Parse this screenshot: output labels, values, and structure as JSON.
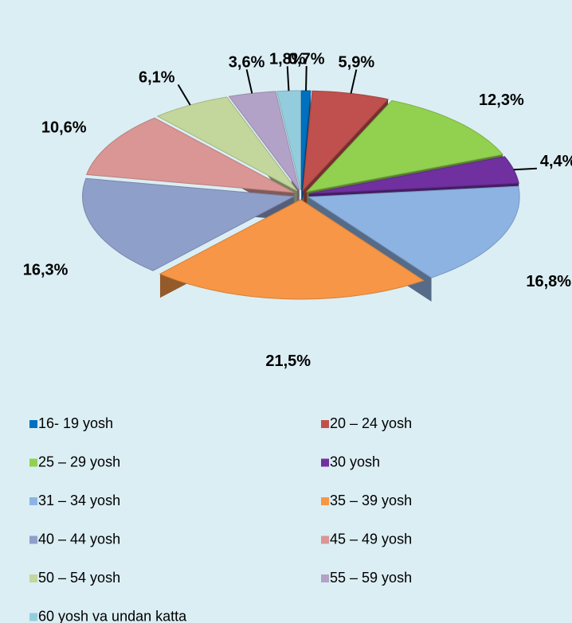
{
  "chart_data": {
    "type": "pie",
    "categories": [
      "16- 19 yosh",
      "20 – 24 yosh",
      "25 – 29 yosh",
      "30 yosh",
      "31 – 34 yosh",
      "35 – 39 yosh",
      "40 – 44 yosh",
      "45 – 49 yosh",
      "50 – 54 yosh",
      "55 – 59 yosh",
      "60 yosh va undan katta"
    ],
    "values": [
      0.7,
      5.9,
      12.3,
      4.4,
      16.8,
      21.5,
      16.3,
      10.6,
      6.1,
      3.6,
      1.8
    ],
    "value_labels": [
      "0,7%",
      "5,9%",
      "12,3%",
      "4,4%",
      "16,8%",
      "21,5%",
      "16,3%",
      "10,6%",
      "6,1%",
      "3,6%",
      "1,8%"
    ],
    "colors": [
      "#0070c0",
      "#c0504d",
      "#92d050",
      "#7030a0",
      "#8db3e2",
      "#f79646",
      "#8e9fca",
      "#d99694",
      "#c3d69b",
      "#b3a2c7",
      "#93cddd"
    ],
    "legend": "bottom"
  }
}
